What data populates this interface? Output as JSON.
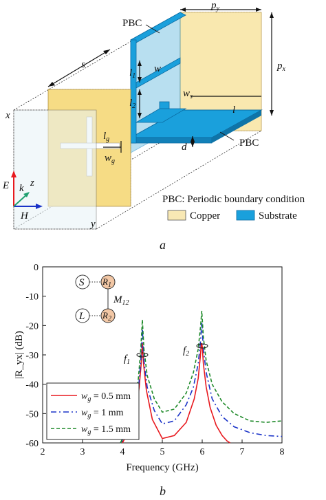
{
  "figure_a": {
    "panel_label": "a",
    "dimension_labels": {
      "py": "p",
      "py_sub": "y",
      "px": "p",
      "px_sub": "x",
      "s": "s",
      "l1": "l",
      "l1_sub": "1",
      "l2": "l",
      "l2_sub": "2",
      "w": "w",
      "ws": "w",
      "ws_sub": "s",
      "l": "l",
      "d": "d",
      "lg": "l",
      "lg_sub": "g",
      "wg": "w",
      "wg_sub": "g"
    },
    "pbc_top": "PBC",
    "pbc_bottom": "PBC",
    "axis_x": "x",
    "axis_y": "y",
    "wave_E": "E",
    "wave_k": "k",
    "wave_z": "z",
    "wave_H": "H",
    "legend": {
      "pbc_note": "PBC: Periodic boundary condition",
      "copper": "Copper",
      "substrate": "Substrate",
      "copper_color": "#f8e8b4",
      "substrate_color": "#1aa0dc"
    }
  },
  "figure_b": {
    "panel_label": "b",
    "inset": {
      "s": "S",
      "l": "L",
      "r1": "R",
      "r1_sub": "1",
      "r2": "R",
      "r2_sub": "2",
      "m": "M",
      "m_sub": "12"
    },
    "annotations": {
      "f1": "f",
      "f1_sub": "1",
      "f2": "f",
      "f2_sub": "2"
    }
  },
  "chart_data": {
    "type": "line",
    "title": "",
    "xlabel": "Frequency (GHz)",
    "ylabel": "|R_yx| (dB)",
    "xlim": [
      2,
      8
    ],
    "ylim": [
      -60,
      0
    ],
    "xticks": [
      2,
      3,
      4,
      5,
      6,
      7,
      8
    ],
    "yticks": [
      0,
      -10,
      -20,
      -30,
      -40,
      -50,
      -60
    ],
    "grid": false,
    "legend_position": "bottom-left",
    "series": [
      {
        "name": "w_g = 0.5 mm",
        "legend_prefix": "w",
        "legend_sub": "g",
        "legend_suffix": " = 0.5 mm",
        "color": "#e8191e",
        "dash": "solid",
        "x": [
          4.0,
          4.2,
          4.35,
          4.42,
          4.47,
          4.5,
          4.53,
          4.6,
          4.75,
          5.0,
          5.3,
          5.6,
          5.8,
          5.9,
          5.95,
          5.98,
          6.0,
          6.03,
          6.1,
          6.2,
          6.35,
          6.5,
          6.62,
          6.7
        ],
        "y": [
          -60,
          -55,
          -48,
          -41,
          -33,
          -26,
          -33,
          -42,
          -52,
          -58.5,
          -57.5,
          -53,
          -45,
          -38,
          -31,
          -26,
          -27,
          -33,
          -41,
          -48,
          -54,
          -57.5,
          -59.3,
          -60
        ]
      },
      {
        "name": "w_g = 1 mm",
        "legend_prefix": "w",
        "legend_sub": "g",
        "legend_suffix": " = 1 mm",
        "color": "#1a33c8",
        "dash": "8 4 2 4",
        "x": [
          3.95,
          4.15,
          4.3,
          4.4,
          4.46,
          4.5,
          4.54,
          4.62,
          4.8,
          5.0,
          5.3,
          5.6,
          5.78,
          5.9,
          5.96,
          5.99,
          6.03,
          6.1,
          6.25,
          6.5,
          6.8,
          7.2,
          7.6,
          8.0
        ],
        "y": [
          -60,
          -56,
          -50,
          -42,
          -32,
          -21,
          -32,
          -41,
          -49,
          -53.5,
          -52.5,
          -47,
          -41,
          -33,
          -25,
          -19,
          -28,
          -36,
          -45,
          -51,
          -54.5,
          -56.5,
          -57.5,
          -57.8
        ]
      },
      {
        "name": "w_g = 1.5 mm",
        "legend_prefix": "w",
        "legend_sub": "g",
        "legend_suffix": " = 1.5 mm",
        "color": "#1f8a2a",
        "dash": "5 3",
        "x": [
          3.95,
          4.15,
          4.3,
          4.4,
          4.46,
          4.5,
          4.54,
          4.62,
          4.8,
          5.0,
          5.3,
          5.6,
          5.78,
          5.9,
          5.96,
          5.99,
          6.03,
          6.1,
          6.25,
          6.5,
          6.8,
          7.2,
          7.6,
          8.0
        ],
        "y": [
          -60,
          -54,
          -47,
          -38,
          -28,
          -18,
          -28,
          -37,
          -45,
          -49.5,
          -48.5,
          -43,
          -36,
          -28,
          -20,
          -15,
          -24,
          -32,
          -40,
          -46,
          -50,
          -52.5,
          -53,
          -52.5
        ]
      }
    ]
  }
}
